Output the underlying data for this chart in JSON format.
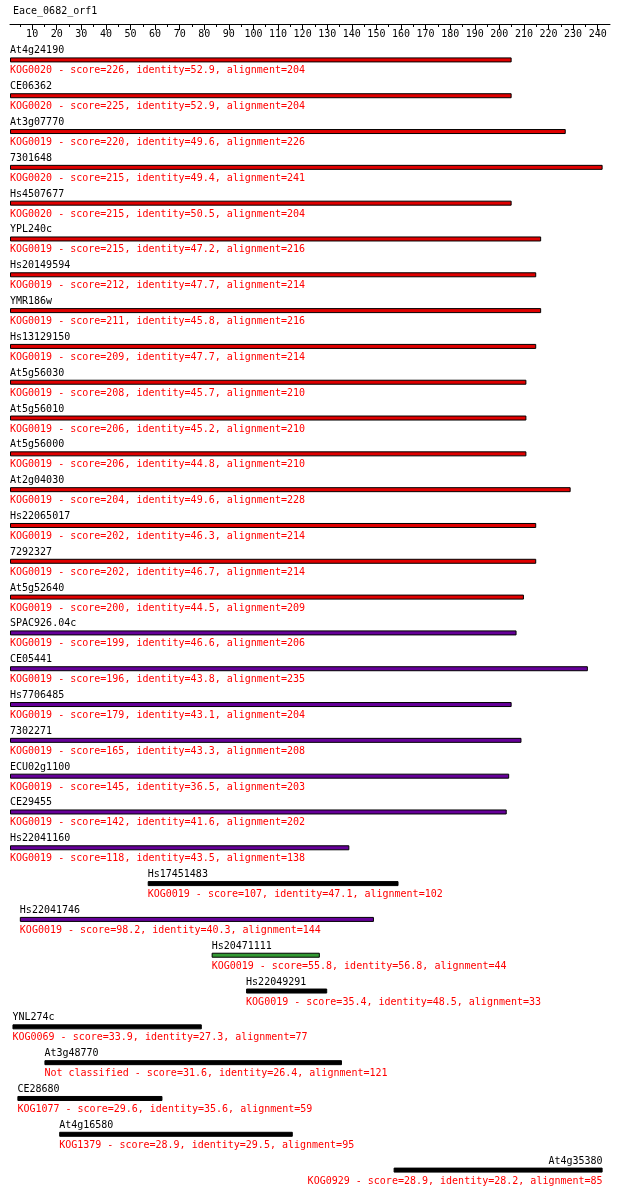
{
  "chart_data": {
    "type": "bar",
    "orientation": "horizontal",
    "title": "Eace_0682_orf1",
    "categories": [
      "At4g24190",
      "CE06362",
      "At3g07770",
      "7301648",
      "Hs4507677",
      "YPL240c",
      "Hs20149594",
      "YMR186w",
      "Hs13129150",
      "At5g56030",
      "At5g56010",
      "At5g56000",
      "At2g04030",
      "Hs22065017",
      "7292327",
      "At5g52640",
      "SPAC926.04c",
      "CE05441",
      "Hs7706485",
      "7302271",
      "ECU02g1100",
      "CE29455",
      "Hs22041160",
      "Hs17451483",
      "Hs22041746",
      "Hs20471111",
      "Hs22049291",
      "YNL274c",
      "At3g48770",
      "CE28680",
      "At4g16580",
      "At4g35380"
    ],
    "base": [
      1,
      1,
      1,
      1,
      1,
      1,
      1,
      1,
      1,
      1,
      1,
      1,
      1,
      1,
      1,
      1,
      1,
      1,
      1,
      1,
      1,
      1,
      1,
      57,
      5,
      83,
      97,
      2,
      15,
      4,
      21,
      157
    ],
    "values": [
      204,
      204,
      226,
      241,
      204,
      216,
      214,
      216,
      214,
      210,
      210,
      210,
      228,
      214,
      214,
      209,
      206,
      235,
      204,
      208,
      203,
      202,
      138,
      102,
      144,
      44,
      33,
      77,
      121,
      59,
      95,
      85
    ],
    "colors": [
      "#e00000",
      "#e00000",
      "#e00000",
      "#e00000",
      "#e00000",
      "#e00000",
      "#e00000",
      "#e00000",
      "#e00000",
      "#e00000",
      "#e00000",
      "#e00000",
      "#e00000",
      "#e00000",
      "#e00000",
      "#e00000",
      "#660099",
      "#660099",
      "#660099",
      "#660099",
      "#660099",
      "#660099",
      "#660099",
      "#000000",
      "#660099",
      "#339933",
      "#000000",
      "#000000",
      "#000000",
      "#000000",
      "#000000",
      "#000000"
    ],
    "value_labels": [
      "KOG0020 - score=226, identity=52.9, alignment=204",
      "KOG0020 - score=225, identity=52.9, alignment=204",
      "KOG0019 - score=220, identity=49.6, alignment=226",
      "KOG0020 - score=215, identity=49.4, alignment=241",
      "KOG0020 - score=215, identity=50.5, alignment=204",
      "KOG0019 - score=215, identity=47.2, alignment=216",
      "KOG0019 - score=212, identity=47.7, alignment=214",
      "KOG0019 - score=211, identity=45.8, alignment=216",
      "KOG0019 - score=209, identity=47.7, alignment=214",
      "KOG0019 - score=208, identity=45.7, alignment=210",
      "KOG0019 - score=206, identity=45.2, alignment=210",
      "KOG0019 - score=206, identity=44.8, alignment=210",
      "KOG0019 - score=204, identity=49.6, alignment=228",
      "KOG0019 - score=202, identity=46.3, alignment=214",
      "KOG0019 - score=202, identity=46.7, alignment=214",
      "KOG0019 - score=200, identity=44.5, alignment=209",
      "KOG0019 - score=199, identity=46.6, alignment=206",
      "KOG0019 - score=196, identity=43.8, alignment=235",
      "KOG0019 - score=179, identity=43.1, alignment=204",
      "KOG0019 - score=165, identity=43.3, alignment=208",
      "KOG0019 - score=145, identity=36.5, alignment=203",
      "KOG0019 - score=142, identity=41.6, alignment=202",
      "KOG0019 - score=118, identity=43.5, alignment=138",
      "KOG0019 - score=107, identity=47.1, alignment=102",
      "KOG0019 - score=98.2, identity=40.3, alignment=144",
      "KOG0019 - score=55.8, identity=56.8, alignment=44",
      "KOG0019 - score=35.4, identity=48.5, alignment=33",
      "KOG0069 - score=33.9, identity=27.3, alignment=77",
      "Not classified - score=31.6, identity=26.4, alignment=121",
      "KOG1077 - score=29.6, identity=35.6, alignment=59",
      "KOG1379 - score=28.9, identity=29.5, alignment=95",
      "KOG0929 - score=28.9, identity=28.2, alignment=85"
    ],
    "xlim": [
      1,
      245
    ],
    "xticks": [
      10,
      20,
      30,
      40,
      50,
      60,
      70,
      80,
      90,
      100,
      110,
      120,
      130,
      140,
      150,
      160,
      170,
      180,
      190,
      200,
      210,
      220,
      230,
      240
    ]
  }
}
